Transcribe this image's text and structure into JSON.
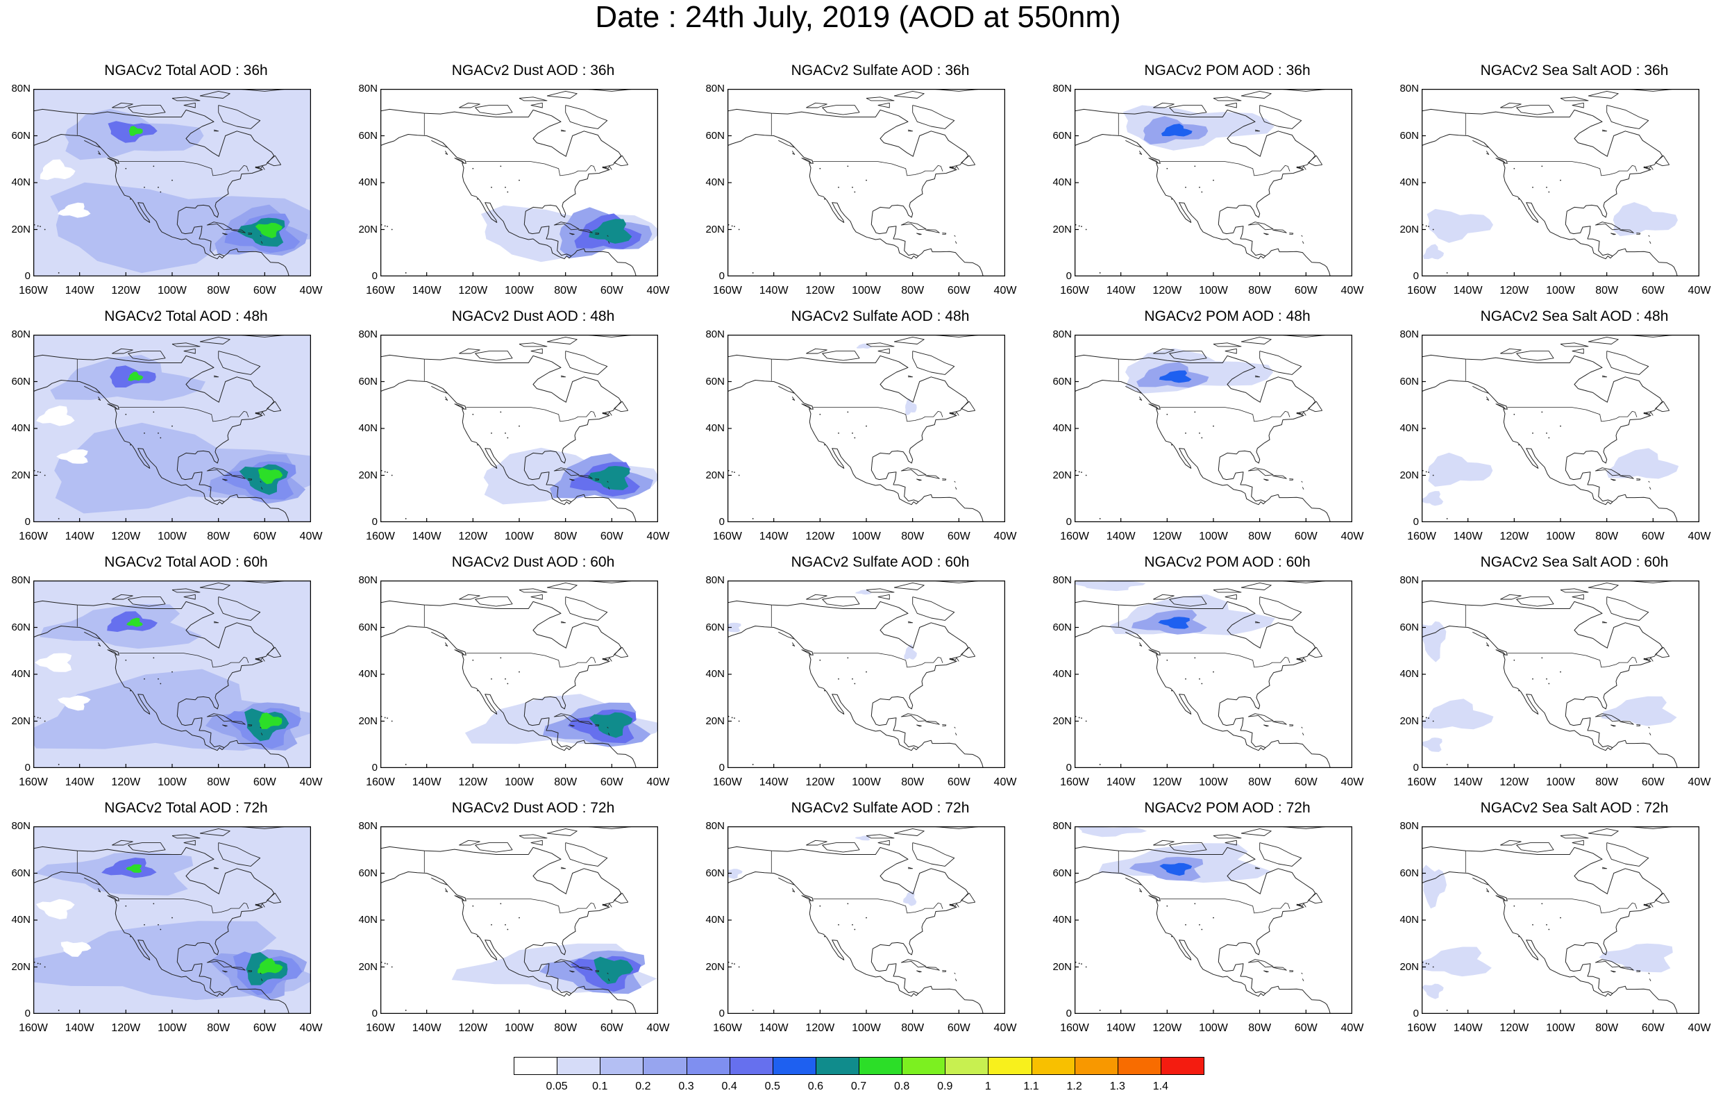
{
  "header": {
    "title": "Date : 24th July, 2019 (AOD at 550nm)"
  },
  "axes": {
    "lat_ticks": [
      "80N",
      "60N",
      "40N",
      "20N",
      "0"
    ],
    "lon_ticks": [
      "160W",
      "140W",
      "120W",
      "100W",
      "80W",
      "60W",
      "40W"
    ]
  },
  "columns": [
    "total",
    "dust",
    "sulfate",
    "pom",
    "seasalt"
  ],
  "panels": [
    [
      "NGACv2 Total AOD : 36h",
      "NGACv2 Dust AOD : 36h",
      "NGACv2 Sulfate AOD : 36h",
      "NGACv2 POM AOD : 36h",
      "NGACv2 Sea Salt AOD : 36h"
    ],
    [
      "NGACv2 Total AOD : 48h",
      "NGACv2 Dust AOD : 48h",
      "NGACv2 Sulfate AOD : 48h",
      "NGACv2 POM AOD : 48h",
      "NGACv2 Sea Salt AOD : 48h"
    ],
    [
      "NGACv2 Total AOD : 60h",
      "NGACv2 Dust AOD : 60h",
      "NGACv2 Sulfate AOD : 60h",
      "NGACv2 POM AOD : 60h",
      "NGACv2 Sea Salt AOD : 60h"
    ],
    [
      "NGACv2 Total AOD : 72h",
      "NGACv2 Dust AOD : 72h",
      "NGACv2 Sulfate AOD : 72h",
      "NGACv2 POM AOD : 72h",
      "NGACv2 Sea Salt  AOD : 72h"
    ]
  ],
  "colorbar": {
    "labels": [
      "0.05",
      "0.1",
      "0.2",
      "0.3",
      "0.4",
      "0.5",
      "0.6",
      "0.7",
      "0.8",
      "0.9",
      "1",
      "1.1",
      "1.2",
      "1.3",
      "1.4"
    ],
    "colors": [
      "#ffffff",
      "#d6dcf8",
      "#b4bff3",
      "#97a5ef",
      "#7f8ff0",
      "#6670ee",
      "#1e60f0",
      "#108c8c",
      "#2cde28",
      "#7cf020",
      "#c8f050",
      "#f8f01c",
      "#f8c000",
      "#f89800",
      "#f86c00",
      "#f41c10"
    ]
  }
}
